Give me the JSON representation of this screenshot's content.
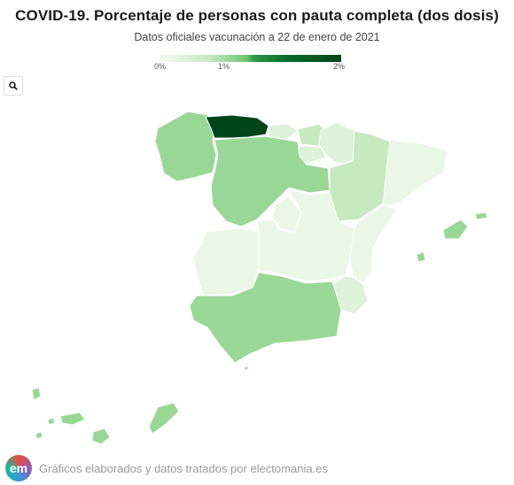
{
  "title": "COVID-19. Porcentaje de personas con pauta completa (dos dosis)",
  "subtitle": "Datos oficiales vacunación a 22 de enero de 2021",
  "legend": {
    "ticks": [
      "0%",
      "1%",
      "2%"
    ]
  },
  "zoom": {
    "icon": "search-icon"
  },
  "colors": {
    "darkest": "#00441b",
    "mid": "#99d796",
    "light": "#c6e9c0",
    "lighter": "#def1d9",
    "lightest": "#eaf6e6"
  },
  "footer": {
    "logo_text": "em",
    "credit": "Gráficos elaborados y datos tratados por electomania.es"
  }
}
